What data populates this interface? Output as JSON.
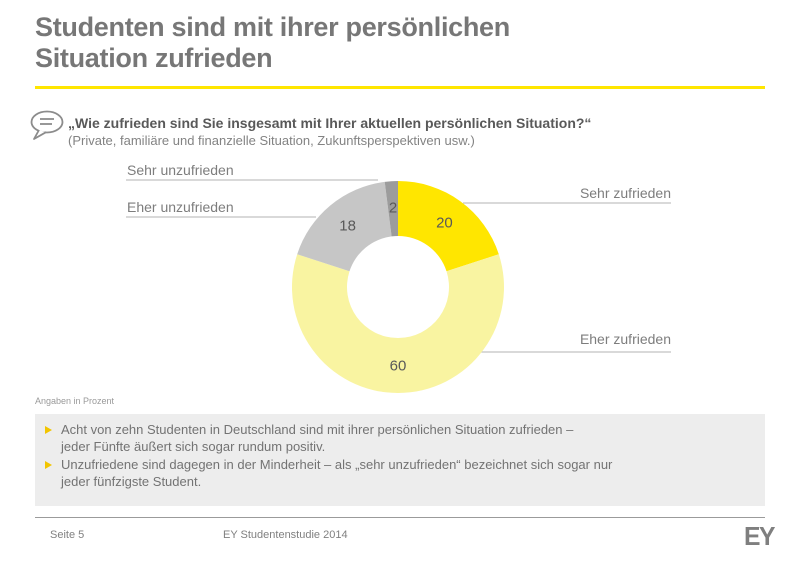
{
  "page": {
    "title_lines": [
      "Studenten sind mit ihrer persönlichen",
      "Situation zufrieden"
    ]
  },
  "question": {
    "main": "„Wie zufrieden sind Sie insgesamt mit Ihrer aktuellen persönlichen Situation?“",
    "sub": "(Private, familiäre und finanzielle Situation, Zukunftsperspektiven usw.)"
  },
  "chart_data": {
    "type": "pie",
    "subtype": "donut",
    "categories": [
      "Sehr zufrieden",
      "Eher zufrieden",
      "Eher unzufrieden",
      "Sehr unzufrieden"
    ],
    "values": [
      20,
      60,
      18,
      2
    ],
    "colors": [
      "#FFE600",
      "#F9F4A1",
      "#C6C6C6",
      "#9C9C9C"
    ],
    "start_angle_deg": 0,
    "direction": "clockwise",
    "inner_radius_ratio": 0.48,
    "value_label_color": "#595959",
    "unit_note": "Angaben in Prozent",
    "legend_position": "outside-callouts",
    "title": ""
  },
  "insights": {
    "bullets": [
      {
        "lines": [
          "Acht von zehn Studenten in Deutschland sind mit ihrer persönlichen Situation zufrieden –",
          "jeder Fünfte äußert sich sogar rundum positiv."
        ]
      },
      {
        "lines": [
          "Unzufriedene sind dagegen in der Minderheit – als „sehr unzufrieden“ bezeichnet sich sogar nur",
          "jeder fünfzigste Student."
        ]
      }
    ]
  },
  "footer": {
    "page_label": "Seite 5",
    "source": "EY Studentenstudie 2014",
    "logo_text": "EY"
  },
  "theme": {
    "accent_yellow": "#FFE600",
    "title_gray": "#777777",
    "body_text_gray": "#737373",
    "label_gray": "#7d7d7d",
    "box_gray": "#EDEDED",
    "bullet_marker_yellow": "#F2C500",
    "leader_line_gray": "#B3B3B3"
  }
}
